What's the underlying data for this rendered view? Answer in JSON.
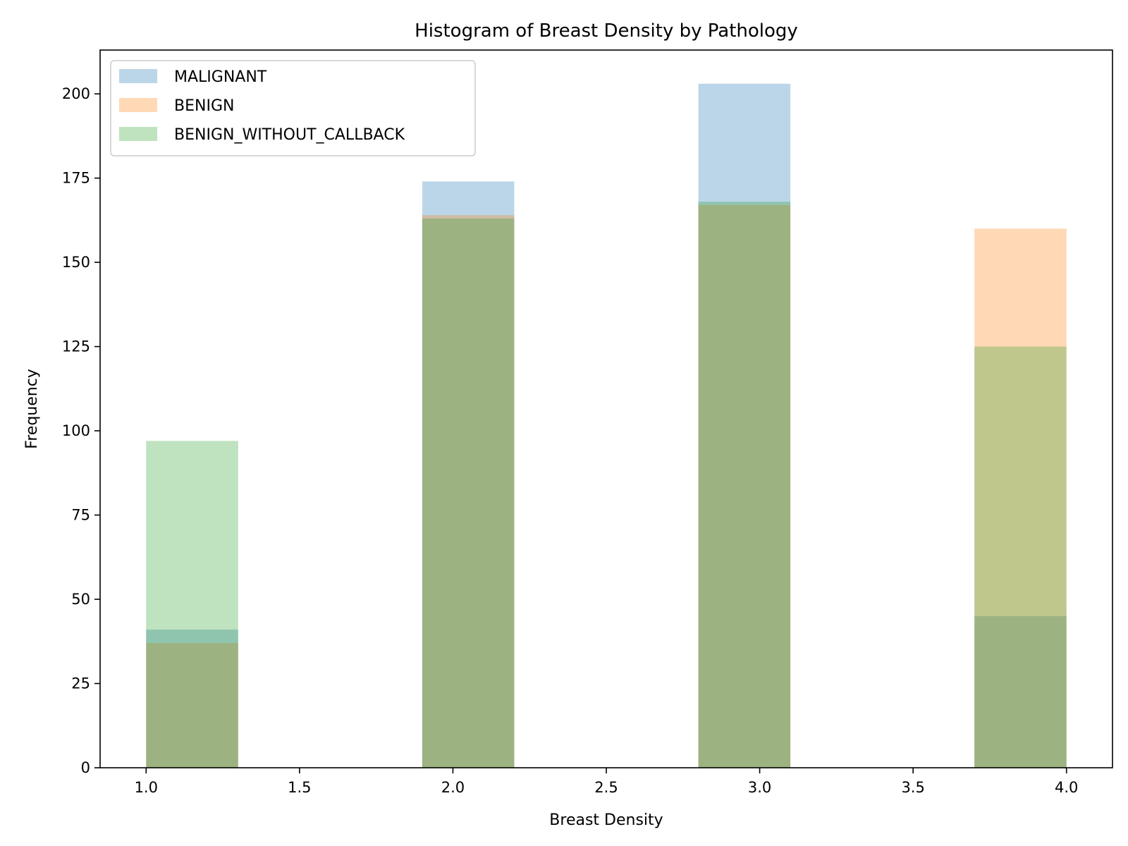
{
  "chart_data": {
    "type": "bar",
    "title": "Histogram of Breast Density by Pathology",
    "xlabel": "Breast Density",
    "ylabel": "Frequency",
    "xlim": [
      0.85,
      4.15
    ],
    "ylim": [
      0,
      213
    ],
    "xticks": [
      "1.0",
      "1.5",
      "2.0",
      "2.5",
      "3.0",
      "3.5",
      "4.0"
    ],
    "yticks": [
      "0",
      "25",
      "50",
      "75",
      "100",
      "125",
      "150",
      "175",
      "200"
    ],
    "bin_edges": [
      1.0,
      1.3,
      1.6,
      1.9,
      2.2,
      2.5,
      2.8,
      3.1,
      3.4,
      3.7,
      4.0
    ],
    "legend_position": "upper-left",
    "alpha": 0.3,
    "series": [
      {
        "name": "MALIGNANT",
        "color": "#1f77b4",
        "values": [
          41,
          0,
          0,
          174,
          0,
          0,
          203,
          0,
          0,
          45
        ]
      },
      {
        "name": "BENIGN",
        "color": "#ff7f0e",
        "values": [
          37,
          0,
          0,
          164,
          0,
          0,
          167,
          0,
          0,
          160
        ]
      },
      {
        "name": "BENIGN_WITHOUT_CALLBACK",
        "color": "#2ca02c",
        "values": [
          97,
          0,
          0,
          163,
          0,
          0,
          168,
          0,
          0,
          125
        ]
      }
    ]
  }
}
